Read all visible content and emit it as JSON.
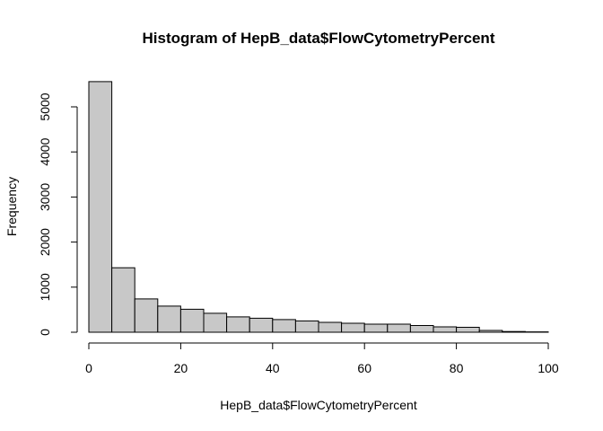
{
  "chart_data": {
    "type": "bar",
    "title": "Histogram of HepB_data$FlowCytometryPercent",
    "xlabel": "HepB_data$FlowCytometryPercent",
    "ylabel": "Frequency",
    "xlim": [
      0,
      100
    ],
    "ylim": [
      0,
      5600
    ],
    "x_ticks": [
      0,
      20,
      40,
      60,
      80,
      100
    ],
    "y_ticks": [
      0,
      1000,
      2000,
      3000,
      4000,
      5000
    ],
    "bin_edges": [
      0,
      5,
      10,
      15,
      20,
      25,
      30,
      35,
      40,
      45,
      50,
      55,
      60,
      65,
      70,
      75,
      80,
      85,
      90,
      95,
      100
    ],
    "values": [
      5560,
      1430,
      740,
      580,
      510,
      420,
      340,
      310,
      280,
      250,
      220,
      200,
      180,
      180,
      150,
      120,
      110,
      40,
      15,
      8
    ],
    "bar_color": "#c8c8c8",
    "grid": false,
    "legend": "none"
  }
}
